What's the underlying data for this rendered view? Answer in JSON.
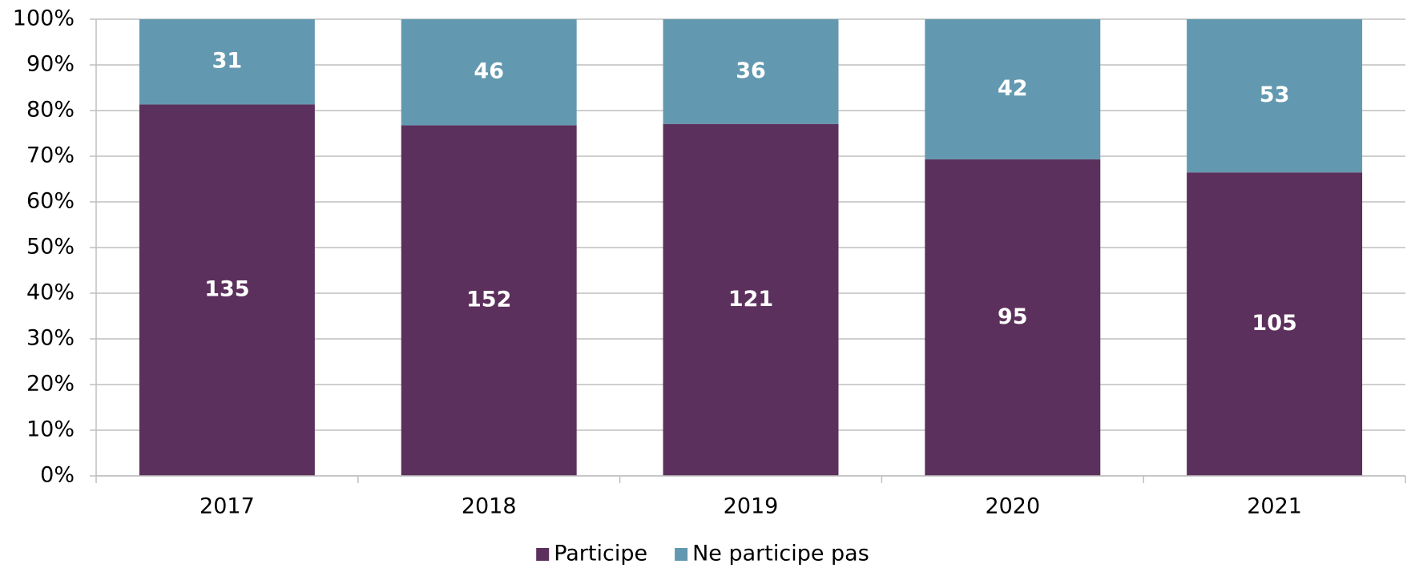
{
  "chart_data": {
    "type": "bar",
    "stacking": "percent",
    "categories": [
      "2017",
      "2018",
      "2019",
      "2020",
      "2021"
    ],
    "series": [
      {
        "name": "Participe",
        "color": "#5c305c",
        "values": [
          135,
          152,
          121,
          95,
          105
        ]
      },
      {
        "name": "Ne participe pas",
        "color": "#6399b0",
        "values": [
          31,
          46,
          36,
          42,
          53
        ]
      }
    ],
    "ylim": [
      0,
      100
    ],
    "yticks": [
      {
        "value": 0,
        "label": "0%"
      },
      {
        "value": 10,
        "label": "10%"
      },
      {
        "value": 20,
        "label": "20%"
      },
      {
        "value": 30,
        "label": "30%"
      },
      {
        "value": 40,
        "label": "40%"
      },
      {
        "value": 50,
        "label": "50%"
      },
      {
        "value": 60,
        "label": "60%"
      },
      {
        "value": 70,
        "label": "70%"
      },
      {
        "value": 80,
        "label": "80%"
      },
      {
        "value": 90,
        "label": "90%"
      },
      {
        "value": 100,
        "label": "100%"
      }
    ],
    "grid": true,
    "legend": "bottom"
  }
}
